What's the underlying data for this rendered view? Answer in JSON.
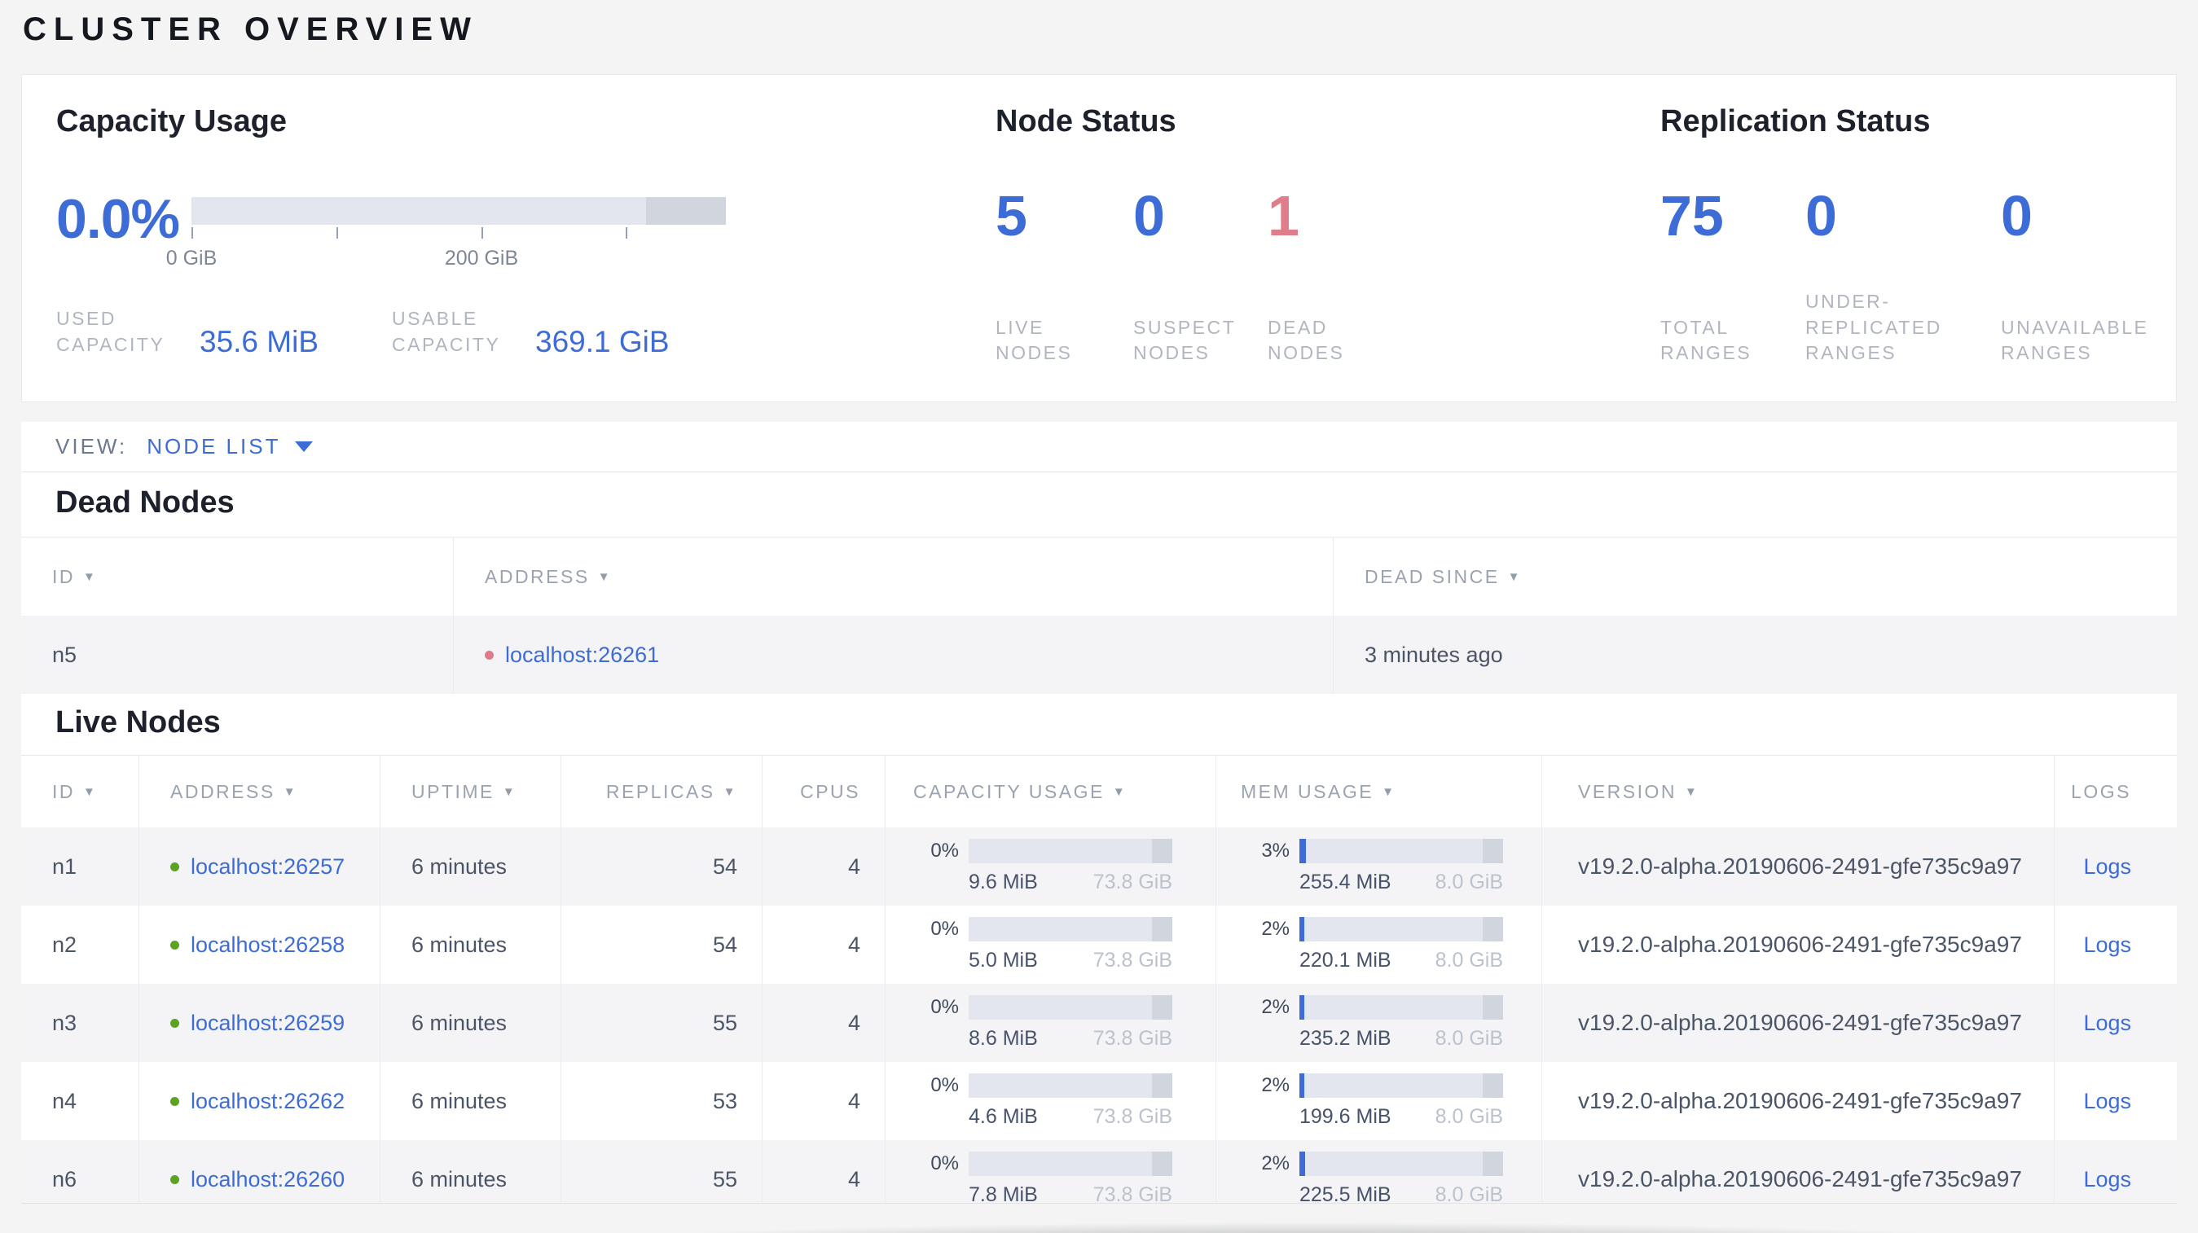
{
  "colors": {
    "accent_blue": "#3e6cd7",
    "dead_red": "#e07d8a",
    "live_green": "#5aa41f",
    "bar_light": "#e3e6ef",
    "bar_dark": "#d1d5de"
  },
  "page": {
    "title": "CLUSTER OVERVIEW"
  },
  "summary": {
    "capacity": {
      "title": "Capacity Usage",
      "percent": "0.0%",
      "tick_labels": [
        "0 GiB",
        "200 GiB"
      ],
      "used_label": "USED CAPACITY",
      "used_value": "35.6 MiB",
      "usable_label": "USABLE CAPACITY",
      "usable_value": "369.1 GiB",
      "bar_fill_pct": 0
    },
    "node_status": {
      "title": "Node Status",
      "metrics": [
        {
          "value": "5",
          "label": "LIVE NODES"
        },
        {
          "value": "0",
          "label": "SUSPECT NODES"
        },
        {
          "value": "1",
          "label": "DEAD NODES"
        }
      ]
    },
    "replication": {
      "title": "Replication Status",
      "metrics": [
        {
          "value": "75",
          "label": "TOTAL RANGES"
        },
        {
          "value": "0",
          "label": "UNDER-REPLICATED RANGES"
        },
        {
          "value": "0",
          "label": "UNAVAILABLE RANGES"
        }
      ]
    }
  },
  "view_bar": {
    "label": "VIEW:",
    "selected": "NODE LIST"
  },
  "dead_nodes": {
    "title": "Dead Nodes",
    "columns": [
      {
        "label": "ID"
      },
      {
        "label": "ADDRESS"
      },
      {
        "label": "DEAD SINCE"
      }
    ],
    "rows": [
      {
        "id": "n5",
        "address": "localhost:26261",
        "dead_since": "3 minutes ago"
      }
    ]
  },
  "live_nodes": {
    "title": "Live Nodes",
    "columns": [
      {
        "label": "ID"
      },
      {
        "label": "ADDRESS"
      },
      {
        "label": "UPTIME"
      },
      {
        "label": "REPLICAS"
      },
      {
        "label": "CPUS"
      },
      {
        "label": "CAPACITY USAGE"
      },
      {
        "label": "MEM USAGE"
      },
      {
        "label": "VERSION"
      },
      {
        "label": "LOGS"
      }
    ],
    "rows": [
      {
        "id": "n1",
        "address": "localhost:26257",
        "uptime": "6 minutes",
        "replicas": "54",
        "cpus": "4",
        "capacity": {
          "percent": "0%",
          "used": "9.6 MiB",
          "total": "73.8 GiB",
          "fill": 0
        },
        "mem": {
          "percent": "3%",
          "used": "255.4 MiB",
          "total": "8.0 GiB",
          "fill": 3
        },
        "version": "v19.2.0-alpha.20190606-2491-gfe735c9a97",
        "logs": "Logs"
      },
      {
        "id": "n2",
        "address": "localhost:26258",
        "uptime": "6 minutes",
        "replicas": "54",
        "cpus": "4",
        "capacity": {
          "percent": "0%",
          "used": "5.0 MiB",
          "total": "73.8 GiB",
          "fill": 0
        },
        "mem": {
          "percent": "2%",
          "used": "220.1 MiB",
          "total": "8.0 GiB",
          "fill": 2.5
        },
        "version": "v19.2.0-alpha.20190606-2491-gfe735c9a97",
        "logs": "Logs"
      },
      {
        "id": "n3",
        "address": "localhost:26259",
        "uptime": "6 minutes",
        "replicas": "55",
        "cpus": "4",
        "capacity": {
          "percent": "0%",
          "used": "8.6 MiB",
          "total": "73.8 GiB",
          "fill": 0
        },
        "mem": {
          "percent": "2%",
          "used": "235.2 MiB",
          "total": "8.0 GiB",
          "fill": 2.5
        },
        "version": "v19.2.0-alpha.20190606-2491-gfe735c9a97",
        "logs": "Logs"
      },
      {
        "id": "n4",
        "address": "localhost:26262",
        "uptime": "6 minutes",
        "replicas": "53",
        "cpus": "4",
        "capacity": {
          "percent": "0%",
          "used": "4.6 MiB",
          "total": "73.8 GiB",
          "fill": 0
        },
        "mem": {
          "percent": "2%",
          "used": "199.6 MiB",
          "total": "8.0 GiB",
          "fill": 2.5
        },
        "version": "v19.2.0-alpha.20190606-2491-gfe735c9a97",
        "logs": "Logs"
      },
      {
        "id": "n6",
        "address": "localhost:26260",
        "uptime": "6 minutes",
        "replicas": "55",
        "cpus": "4",
        "capacity": {
          "percent": "0%",
          "used": "7.8 MiB",
          "total": "73.8 GiB",
          "fill": 0
        },
        "mem": {
          "percent": "2%",
          "used": "225.5 MiB",
          "total": "8.0 GiB",
          "fill": 2.8
        },
        "version": "v19.2.0-alpha.20190606-2491-gfe735c9a97",
        "logs": "Logs"
      }
    ]
  }
}
